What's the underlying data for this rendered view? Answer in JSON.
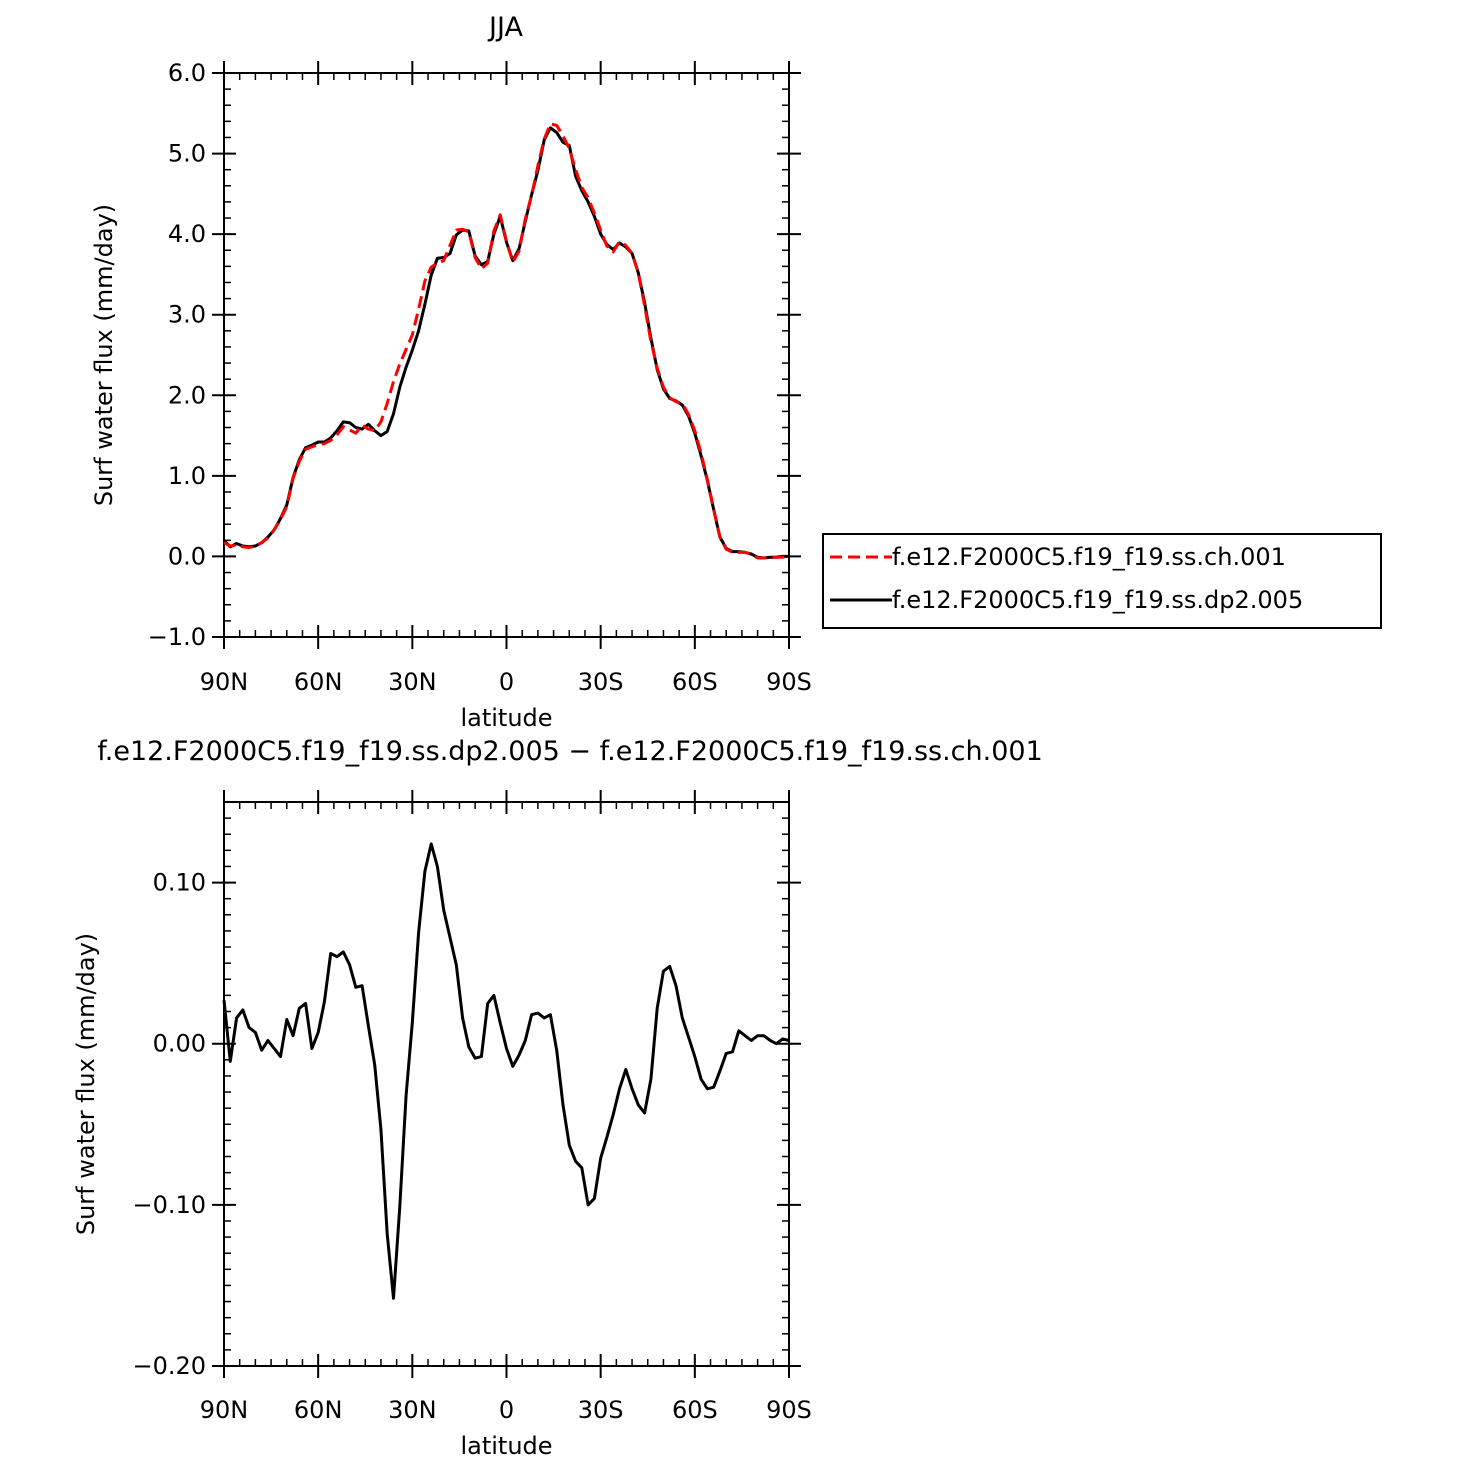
{
  "chart_data": [
    {
      "type": "line",
      "title": "JJA",
      "xlabel": "latitude",
      "ylabel": "Surf water flux (mm/day)",
      "xlim": [
        90,
        -90
      ],
      "ylim": [
        -1.0,
        6.0
      ],
      "x_ticks": [
        90,
        60,
        30,
        0,
        -30,
        -60,
        -90
      ],
      "x_tick_labels": [
        "90N",
        "60N",
        "30N",
        "0",
        "30S",
        "60S",
        "90S"
      ],
      "y_ticks": [
        -1.0,
        0.0,
        1.0,
        2.0,
        3.0,
        4.0,
        5.0,
        6.0
      ],
      "y_tick_labels": [
        "−1.0",
        "0.0",
        "1.0",
        "2.0",
        "3.0",
        "4.0",
        "5.0",
        "6.0"
      ],
      "grid": false,
      "legend_position": "outside-right",
      "series": [
        {
          "name": "f.e12.F2000C5.f19_f19.ss.ch.001",
          "color": "#ff0000",
          "dash": "dashed",
          "x": [
            90,
            88,
            86,
            84,
            82,
            80,
            78,
            76,
            74,
            72,
            70,
            68,
            66,
            64,
            62,
            60,
            58,
            56,
            54,
            52,
            50,
            48,
            46,
            44,
            42,
            40,
            38,
            36,
            34,
            32,
            30,
            28,
            26,
            24,
            22,
            20,
            18,
            16,
            14,
            12,
            10,
            8,
            6,
            4,
            2,
            0,
            -2,
            -4,
            -6,
            -8,
            -10,
            -12,
            -14,
            -16,
            -18,
            -20,
            -22,
            -24,
            -26,
            -28,
            -30,
            -32,
            -34,
            -36,
            -38,
            -40,
            -42,
            -44,
            -46,
            -48,
            -50,
            -52,
            -54,
            -56,
            -58,
            -60,
            -62,
            -64,
            -66,
            -68,
            -70,
            -72,
            -74,
            -76,
            -78,
            -80,
            -82,
            -84,
            -86,
            -88,
            -90
          ],
          "values": [
            0.17,
            0.13,
            0.14,
            0.12,
            0.11,
            0.13,
            0.17,
            0.23,
            0.33,
            0.46,
            0.62,
            0.97,
            1.18,
            1.33,
            1.36,
            1.39,
            1.4,
            1.44,
            1.51,
            1.61,
            1.57,
            1.53,
            1.63,
            1.58,
            1.56,
            1.67,
            1.9,
            2.17,
            2.39,
            2.57,
            2.75,
            3.07,
            3.42,
            3.59,
            3.64,
            3.67,
            3.86,
            4.05,
            4.06,
            4.03,
            3.71,
            3.57,
            3.64,
            4.04,
            4.24,
            3.91,
            3.65,
            3.79,
            4.19,
            4.48,
            4.85,
            5.18,
            5.37,
            5.35,
            5.22,
            5.06,
            4.8,
            4.58,
            4.45,
            4.26,
            4.05,
            3.85,
            3.78,
            3.91,
            3.86,
            3.76,
            3.52,
            3.11,
            2.67,
            2.34,
            2.1,
            1.97,
            1.92,
            1.9,
            1.76,
            1.56,
            1.28,
            0.95,
            0.59,
            0.24,
            0.09,
            0.05,
            0.05,
            0.05,
            0.03,
            -0.02,
            -0.02,
            -0.01,
            -0.01,
            -0.01,
            0.0
          ]
        },
        {
          "name": "f.e12.F2000C5.f19_f19.ss.dp2.005",
          "color": "#000000",
          "dash": "solid",
          "x": [
            90,
            88,
            86,
            84,
            82,
            80,
            78,
            76,
            74,
            72,
            70,
            68,
            66,
            64,
            62,
            60,
            58,
            56,
            54,
            52,
            50,
            48,
            46,
            44,
            42,
            40,
            38,
            36,
            34,
            32,
            30,
            28,
            26,
            24,
            22,
            20,
            18,
            16,
            14,
            12,
            10,
            8,
            6,
            4,
            2,
            0,
            -2,
            -4,
            -6,
            -8,
            -10,
            -12,
            -14,
            -16,
            -18,
            -20,
            -22,
            -24,
            -26,
            -28,
            -30,
            -32,
            -34,
            -36,
            -38,
            -40,
            -42,
            -44,
            -46,
            -48,
            -50,
            -52,
            -54,
            -56,
            -58,
            -60,
            -62,
            -64,
            -66,
            -68,
            -70,
            -72,
            -74,
            -76,
            -78,
            -80,
            -82,
            -84,
            -86,
            -88,
            -90
          ],
          "values": [
            0.2,
            0.12,
            0.16,
            0.13,
            0.12,
            0.13,
            0.17,
            0.24,
            0.33,
            0.47,
            0.64,
            0.98,
            1.2,
            1.35,
            1.38,
            1.42,
            1.42,
            1.47,
            1.56,
            1.67,
            1.66,
            1.6,
            1.58,
            1.64,
            1.56,
            1.5,
            1.55,
            1.77,
            2.1,
            2.35,
            2.56,
            2.8,
            3.13,
            3.49,
            3.7,
            3.71,
            3.76,
            3.99,
            4.05,
            4.04,
            3.73,
            3.62,
            3.66,
            4.0,
            4.22,
            3.9,
            3.67,
            3.82,
            4.16,
            4.49,
            4.79,
            5.17,
            5.32,
            5.26,
            5.14,
            5.1,
            4.72,
            4.54,
            4.4,
            4.22,
            4.0,
            3.87,
            3.81,
            3.89,
            3.84,
            3.76,
            3.52,
            3.15,
            2.71,
            2.32,
            2.08,
            1.96,
            1.93,
            1.88,
            1.74,
            1.53,
            1.25,
            0.94,
            0.58,
            0.24,
            0.1,
            0.06,
            0.06,
            0.05,
            0.03,
            -0.01,
            -0.02,
            -0.01,
            -0.01,
            0.0,
            0.0
          ]
        }
      ]
    },
    {
      "type": "line",
      "title": "f.e12.F2000C5.f19_f19.ss.dp2.005 − f.e12.F2000C5.f19_f19.ss.ch.001",
      "xlabel": "latitude",
      "ylabel": "Surf water flux (mm/day)",
      "xlim": [
        90,
        -90
      ],
      "ylim": [
        -0.2,
        0.15
      ],
      "x_ticks": [
        90,
        60,
        30,
        0,
        -30,
        -60,
        -90
      ],
      "x_tick_labels": [
        "90N",
        "60N",
        "30N",
        "0",
        "30S",
        "60S",
        "90S"
      ],
      "y_ticks": [
        -0.2,
        -0.1,
        0.0,
        0.1
      ],
      "y_tick_labels": [
        "−0.20",
        "−0.10",
        "0.00",
        "0.10"
      ],
      "grid": false,
      "series": [
        {
          "color": "#000000",
          "dash": "solid",
          "x": [
            90,
            88,
            86,
            84,
            82,
            80,
            78,
            76,
            74,
            72,
            70,
            68,
            66,
            64,
            62,
            60,
            58,
            56,
            54,
            52,
            50,
            48,
            46,
            44,
            42,
            40,
            38,
            36,
            34,
            32,
            30,
            28,
            26,
            24,
            22,
            20,
            18,
            16,
            14,
            12,
            10,
            8,
            6,
            4,
            2,
            0,
            -2,
            -4,
            -6,
            -8,
            -10,
            -12,
            -14,
            -16,
            -18,
            -20,
            -22,
            -24,
            -26,
            -28,
            -30,
            -32,
            -34,
            -36,
            -38,
            -40,
            -42,
            -44,
            -46,
            -48,
            -50,
            -52,
            -54,
            -56,
            -58,
            -60,
            -62,
            -64,
            -66,
            -68,
            -70,
            -72,
            -74,
            -76,
            -78,
            -80,
            -82,
            -84,
            -86,
            -88,
            -90
          ],
          "values": [
            0.027,
            -0.011,
            0.016,
            0.021,
            0.01,
            0.007,
            -0.004,
            0.002,
            -0.003,
            -0.008,
            0.015,
            0.005,
            0.022,
            0.025,
            -0.003,
            0.007,
            0.026,
            0.056,
            0.054,
            0.057,
            0.049,
            0.035,
            0.036,
            0.011,
            -0.013,
            -0.053,
            -0.118,
            -0.158,
            -0.101,
            -0.032,
            0.013,
            0.069,
            0.107,
            0.124,
            0.11,
            0.083,
            0.066,
            0.049,
            0.016,
            -0.002,
            -0.009,
            -0.008,
            0.025,
            0.03,
            0.013,
            -0.003,
            -0.014,
            -0.007,
            0.002,
            0.018,
            0.019,
            0.016,
            0.018,
            -0.004,
            -0.038,
            -0.063,
            -0.073,
            -0.077,
            -0.1,
            -0.096,
            -0.071,
            -0.058,
            -0.044,
            -0.028,
            -0.016,
            -0.028,
            -0.038,
            -0.043,
            -0.022,
            0.022,
            0.045,
            0.048,
            0.036,
            0.016,
            0.004,
            -0.008,
            -0.022,
            -0.028,
            -0.027,
            -0.017,
            -0.006,
            -0.005,
            0.008,
            0.005,
            0.002,
            0.005,
            0.005,
            0.002,
            0.0,
            0.003,
            0.002
          ]
        }
      ]
    }
  ]
}
